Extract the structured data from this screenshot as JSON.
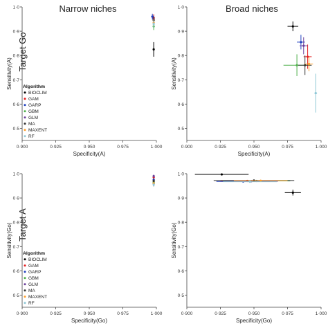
{
  "row_labels": {
    "top": "Target Go",
    "bottom": "Target A"
  },
  "column_titles": {
    "left": "Narrow niches",
    "right": "Broad niches"
  },
  "legend": {
    "title": "Algorithm",
    "items": [
      {
        "name": "BIOCLIM",
        "color": "#000000"
      },
      {
        "name": "GAM",
        "color": "#e41a1c"
      },
      {
        "name": "GARP",
        "color": "#1f3fbf"
      },
      {
        "name": "GBM",
        "color": "#4daf4a"
      },
      {
        "name": "GLM",
        "color": "#6a3d9a"
      },
      {
        "name": "MA",
        "color": "#333333"
      },
      {
        "name": "MAXENT",
        "color": "#ff9f2a"
      },
      {
        "name": "RF",
        "color": "#8fc7d6"
      }
    ]
  },
  "chart_data": [
    {
      "type": "scatter",
      "title": "Narrow niches",
      "row_label": "Target Go",
      "xlabel": "Specificity(A)",
      "ylabel": "Sensitivity(A)",
      "xlim": [
        0.9,
        1.0
      ],
      "ylim": [
        0.45,
        1.0
      ],
      "xticks": [
        "0·900",
        "0·925",
        "0·950",
        "0·975",
        "1·000"
      ],
      "yticks": [
        "0·5",
        "0·6",
        "0·7",
        "0·8",
        "0·9",
        "1·0"
      ],
      "legend_position": "bottom-left",
      "series": [
        {
          "name": "BIOCLIM",
          "x": 0.998,
          "y": 0.825,
          "xerr": 0.0005,
          "yerr": 0.03
        },
        {
          "name": "GAM",
          "x": 0.998,
          "y": 0.955,
          "xerr": 0.0005,
          "yerr": 0.015
        },
        {
          "name": "GARP",
          "x": 0.997,
          "y": 0.96,
          "xerr": 0.001,
          "yerr": 0.012
        },
        {
          "name": "GBM",
          "x": 0.998,
          "y": 0.92,
          "xerr": 0.0005,
          "yerr": 0.015
        },
        {
          "name": "GLM",
          "x": 0.998,
          "y": 0.95,
          "xerr": 0.0005,
          "yerr": 0.015
        },
        {
          "name": "MA",
          "x": 0.998,
          "y": 0.945,
          "xerr": 0.0005,
          "yerr": 0.015
        },
        {
          "name": "MAXENT",
          "x": 0.998,
          "y": 0.935,
          "xerr": 0.0005,
          "yerr": 0.015
        },
        {
          "name": "RF",
          "x": 0.998,
          "y": 0.93,
          "xerr": 0.0005,
          "yerr": 0.015
        }
      ]
    },
    {
      "type": "scatter",
      "title": "Broad niches",
      "row_label": "Target Go",
      "xlabel": "Specificity(A)",
      "ylabel": "Sensitivity(A)",
      "xlim": [
        0.9,
        1.0
      ],
      "ylim": [
        0.45,
        1.0
      ],
      "xticks": [
        "0·900",
        "0·925",
        "0·950",
        "0·975",
        "1·000"
      ],
      "yticks": [
        "0·5",
        "0·6",
        "0·7",
        "0·8",
        "0·9",
        "1·0"
      ],
      "series": [
        {
          "name": "BIOCLIM",
          "x": 0.979,
          "y": 0.92,
          "xerr": 0.004,
          "yerr": 0.02
        },
        {
          "name": "GAM",
          "x": 0.99,
          "y": 0.795,
          "xerr": 0.003,
          "yerr": 0.05
        },
        {
          "name": "GARP",
          "x": 0.985,
          "y": 0.855,
          "xerr": 0.003,
          "yerr": 0.03
        },
        {
          "name": "GBM",
          "x": 0.982,
          "y": 0.76,
          "xerr": 0.01,
          "yerr": 0.045
        },
        {
          "name": "GLM",
          "x": 0.987,
          "y": 0.84,
          "xerr": 0.003,
          "yerr": 0.035
        },
        {
          "name": "MA",
          "x": 0.988,
          "y": 0.76,
          "xerr": 0.005,
          "yerr": 0.04
        },
        {
          "name": "MAXENT",
          "x": 0.991,
          "y": 0.765,
          "xerr": 0.003,
          "yerr": 0.03
        },
        {
          "name": "RF",
          "x": 0.996,
          "y": 0.645,
          "xerr": 0.001,
          "yerr": 0.08
        }
      ]
    },
    {
      "type": "scatter",
      "title": "",
      "row_label": "Target A",
      "xlabel": "Specificity(Go)",
      "ylabel": "Sensitivity(Go)",
      "xlim": [
        0.9,
        1.0
      ],
      "ylim": [
        0.45,
        1.0
      ],
      "xticks": [
        "0·900",
        "0·925",
        "0·950",
        "0·975",
        "1·000"
      ],
      "yticks": [
        "0·5",
        "0·6",
        "0·7",
        "0·8",
        "0·9",
        "1·0"
      ],
      "legend_position": "bottom-left",
      "series": [
        {
          "name": "BIOCLIM",
          "x": 0.998,
          "y": 0.96,
          "xerr": 0.0,
          "yerr": 0.012
        },
        {
          "name": "GAM",
          "x": 0.998,
          "y": 0.985,
          "xerr": 0.0,
          "yerr": 0.006
        },
        {
          "name": "GARP",
          "x": 0.998,
          "y": 0.975,
          "xerr": 0.0,
          "yerr": 0.006
        },
        {
          "name": "GBM",
          "x": 0.998,
          "y": 0.965,
          "xerr": 0.0,
          "yerr": 0.006
        },
        {
          "name": "GLM",
          "x": 0.998,
          "y": 0.99,
          "xerr": 0.0,
          "yerr": 0.006
        },
        {
          "name": "MA",
          "x": 0.998,
          "y": 0.97,
          "xerr": 0.0,
          "yerr": 0.006
        },
        {
          "name": "MAXENT",
          "x": 0.998,
          "y": 0.96,
          "xerr": 0.0,
          "yerr": 0.006
        },
        {
          "name": "RF",
          "x": 0.998,
          "y": 0.955,
          "xerr": 0.0,
          "yerr": 0.006
        }
      ]
    },
    {
      "type": "scatter",
      "title": "",
      "row_label": "Target A",
      "xlabel": "Specificity(Go)",
      "ylabel": "Sensitivity(Go)",
      "xlim": [
        0.9,
        1.0
      ],
      "ylim": [
        0.45,
        1.0
      ],
      "xticks": [
        "0·900",
        "0·925",
        "0·950",
        "0·975",
        "1·000"
      ],
      "yticks": [
        "0·5",
        "0·6",
        "0·7",
        "0·8",
        "0·9",
        "1·0"
      ],
      "series": [
        {
          "name": "BIOCLIM",
          "x": 0.926,
          "y": 0.997,
          "xerr": 0.02,
          "yerr": 0.004
        },
        {
          "name": "GAM",
          "x": 0.945,
          "y": 0.97,
          "xerr": 0.02,
          "yerr": 0.004
        },
        {
          "name": "GARP",
          "x": 0.942,
          "y": 0.968,
          "xerr": 0.02,
          "yerr": 0.004
        },
        {
          "name": "GBM",
          "x": 0.952,
          "y": 0.97,
          "xerr": 0.025,
          "yerr": 0.004
        },
        {
          "name": "GLM",
          "x": 0.948,
          "y": 0.969,
          "xerr": 0.02,
          "yerr": 0.004
        },
        {
          "name": "MA",
          "x": 0.95,
          "y": 0.972,
          "xerr": 0.03,
          "yerr": 0.004
        },
        {
          "name": "MAXENT",
          "x": 0.955,
          "y": 0.971,
          "xerr": 0.02,
          "yerr": 0.004
        },
        {
          "name": "RF",
          "x": 0.947,
          "y": 0.967,
          "xerr": 0.02,
          "yerr": 0.004
        },
        {
          "name": "BIOCLIM",
          "x": 0.979,
          "y": 0.922,
          "xerr": 0.006,
          "yerr": 0.012
        }
      ]
    }
  ]
}
